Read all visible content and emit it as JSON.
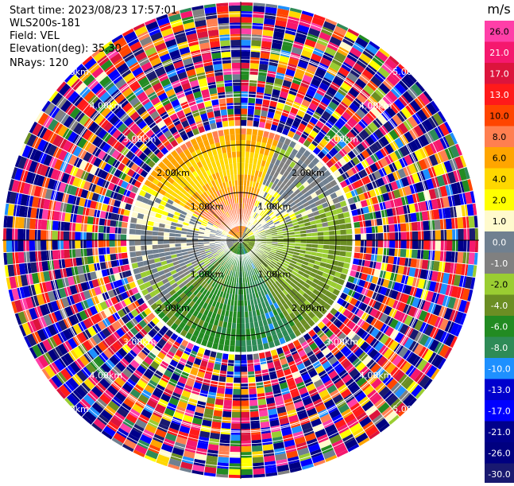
{
  "header": {
    "start_time": "Start time: 2023/08/23 17:57:01",
    "instrument": "WLS200s-181",
    "field": "Field: VEL",
    "elevation": "Elevation(deg): 35.30",
    "nrays": "NRays: 120"
  },
  "chart_data": {
    "type": "heatmap",
    "projection": "polar PPI",
    "field": "VEL",
    "units": "m/s",
    "n_rays": 120,
    "range_rings_km": [
      1.0,
      2.0,
      3.0,
      4.0,
      5.0
    ],
    "range_ring_labels": [
      "1.00km",
      "2.00km",
      "3.00km",
      "4.00km",
      "5.00km"
    ],
    "max_range_km": 5.0,
    "colorbar": {
      "title": "m/s",
      "tick_labels": [
        "26.0",
        "21.0",
        "17.0",
        "13.0",
        "10.0",
        "8.0",
        "6.0",
        "4.0",
        "2.0",
        "1.0",
        "0.0",
        "-1.0",
        "-2.0",
        "-4.0",
        "-6.0",
        "-8.0",
        "-10.0",
        "-13.0",
        "-17.0",
        "-21.0",
        "-26.0",
        "-30.0"
      ],
      "colors": [
        "#ff3fa8",
        "#f5186e",
        "#dc143c",
        "#ff1a1a",
        "#ff4500",
        "#ff7f50",
        "#ffa500",
        "#ffd700",
        "#ffff00",
        "#fffacd",
        "#708090",
        "#808080",
        "#9acd32",
        "#6b8e23",
        "#228b22",
        "#2e8b57",
        "#1e90ff",
        "#0000cd",
        "#0000ff",
        "#00008b",
        "#000080",
        "#191970"
      ]
    },
    "inner_field_km": 2.35,
    "regions": [
      {
        "sector": "north (upper-left to upper-right)",
        "value_range_m_s": [
          4,
          10
        ],
        "dominant": "orange / coral"
      },
      {
        "sector": "north-east",
        "value_range_m_s": [
          0,
          2
        ],
        "dominant": "yellow with gray"
      },
      {
        "sector": "east and south-east",
        "value_range_m_s": [
          -4,
          -1
        ],
        "dominant": "olive / yellow-green"
      },
      {
        "sector": "south",
        "value_range_m_s": [
          -8,
          -4
        ],
        "dominant": "green / sea green"
      },
      {
        "sector": "west",
        "value_range_m_s": [
          -2,
          2
        ],
        "dominant": "yellow-green with yellow"
      },
      {
        "sector": "outer ring 2.35 to 5 km",
        "value_range_m_s": [
          -30,
          26
        ],
        "dominant": "noise, all colors"
      }
    ]
  }
}
